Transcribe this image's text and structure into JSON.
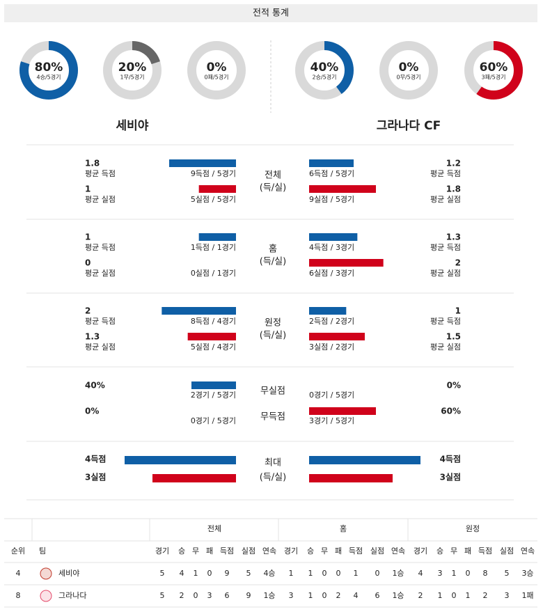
{
  "header": {
    "title": "전적 통계"
  },
  "teams": [
    {
      "name": "세비야",
      "donuts": [
        {
          "value": 80,
          "label": "80%",
          "detail": "4승/5경기"
        },
        {
          "value": 20,
          "label": "20%",
          "detail": "1무/5경기"
        },
        {
          "value": 0,
          "label": "0%",
          "detail": "0패/5경기"
        }
      ]
    },
    {
      "name": "그라나다 CF",
      "donuts": [
        {
          "value": 40,
          "label": "40%",
          "detail": "2승/5경기"
        },
        {
          "value": 0,
          "label": "0%",
          "detail": "0무/5경기"
        },
        {
          "value": 60,
          "label": "60%",
          "detail": "3패/5경기"
        }
      ]
    }
  ],
  "sections": [
    {
      "center": [
        "전체",
        "(득/실)"
      ],
      "rows": [
        {
          "home": {
            "value": 1.8,
            "caption": "평균 득점",
            "detail": "9득점 / 5경기"
          },
          "away": {
            "value": 1.2,
            "caption": "평균 득점",
            "detail": "6득점 / 5경기"
          }
        },
        {
          "home": {
            "value": 1,
            "caption": "평균 실점",
            "detail": "5실점 / 5경기"
          },
          "away": {
            "value": 1.8,
            "caption": "평균 실점",
            "detail": "9실점 / 5경기"
          }
        }
      ]
    },
    {
      "center": [
        "홈",
        "(득/실)"
      ],
      "rows": [
        {
          "home": {
            "value": 1,
            "caption": "평균 득점",
            "detail": "1득점 / 1경기"
          },
          "away": {
            "value": 1.3,
            "caption": "평균 득점",
            "detail": "4득점 / 3경기"
          }
        },
        {
          "home": {
            "value": 0,
            "caption": "평균 실점",
            "detail": "0실점 / 1경기"
          },
          "away": {
            "value": 2,
            "caption": "평균 실점",
            "detail": "6실점 / 3경기"
          }
        }
      ]
    },
    {
      "center": [
        "원정",
        "(득/실)"
      ],
      "rows": [
        {
          "home": {
            "value": 2,
            "caption": "평균 득점",
            "detail": "8득점 / 4경기"
          },
          "away": {
            "value": 1,
            "caption": "평균 득점",
            "detail": "2득점 / 2경기"
          }
        },
        {
          "home": {
            "value": 1.3,
            "caption": "평균 실점",
            "detail": "5실점 / 4경기"
          },
          "away": {
            "value": 1.5,
            "caption": "평균 실점",
            "detail": "3실점 / 2경기"
          }
        }
      ]
    },
    {
      "center": [
        "무실점",
        "무득점"
      ],
      "rows": [
        {
          "home": {
            "value": {
              "value": 40,
              "label": "40%"
            },
            "detail": "2경기 / 5경기"
          },
          "away": {
            "value": {
              "value": 0,
              "label": "0%"
            },
            "detail": "0경기 / 5경기"
          }
        },
        {
          "home": {
            "value": {
              "value": 0,
              "label": "0%"
            },
            "detail": "0경기 / 5경기"
          },
          "away": {
            "value": {
              "value": 60,
              "label": "60%"
            },
            "detail": "3경기 / 5경기"
          }
        }
      ]
    },
    {
      "center": [
        "최대",
        "(득/실)"
      ],
      "rows": [
        {
          "home": {
            "value": {
              "value": 4,
              "label": "4득점"
            }
          },
          "away": {
            "value": {
              "value": 4,
              "label": "4득점"
            }
          }
        },
        {
          "home": {
            "value": {
              "value": 3,
              "label": "3실점"
            }
          },
          "away": {
            "value": {
              "value": 3,
              "label": "3실점"
            }
          }
        }
      ]
    }
  ],
  "table": {
    "head": [
      "순위",
      "팀"
    ],
    "groups": [
      "전체",
      "홈",
      "원정"
    ],
    "subhead": [
      "경기",
      "승",
      "무",
      "패",
      "득점",
      "실점",
      "연속"
    ],
    "rows": [
      [
        4,
        "세비야",
        5,
        4,
        1,
        0,
        9,
        5,
        "4승",
        1,
        1,
        0,
        0,
        1,
        0,
        "1승",
        4,
        3,
        1,
        0,
        8,
        5,
        "3승"
      ],
      [
        8,
        "그라나다",
        5,
        2,
        0,
        3,
        6,
        9,
        "1승",
        3,
        1,
        0,
        2,
        4,
        6,
        "1승",
        2,
        1,
        0,
        1,
        2,
        3,
        "1패"
      ]
    ]
  }
}
